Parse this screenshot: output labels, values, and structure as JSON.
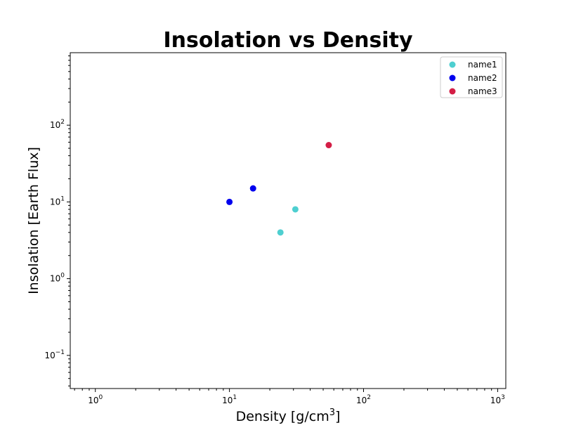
{
  "chart_data": {
    "type": "scatter",
    "title": "Insolation vs Density",
    "xlabel": "Density [g/cm",
    "xlabel_sup": "3",
    "xlabel_end": "]",
    "ylabel": "Insolation [Earth Flux]",
    "xscale": "log",
    "yscale": "log",
    "xlim": [
      0.65,
      1150
    ],
    "ylim": [
      0.037,
      880
    ],
    "x_ticks": [
      {
        "base": "10",
        "exp": "0",
        "value": 1
      },
      {
        "base": "10",
        "exp": "1",
        "value": 10
      },
      {
        "base": "10",
        "exp": "2",
        "value": 100
      },
      {
        "base": "10",
        "exp": "3",
        "value": 1000
      }
    ],
    "y_ticks": [
      {
        "base": "10",
        "exp": "−1",
        "value": 0.1
      },
      {
        "base": "10",
        "exp": "0",
        "value": 1
      },
      {
        "base": "10",
        "exp": "1",
        "value": 10
      },
      {
        "base": "10",
        "exp": "2",
        "value": 100
      }
    ],
    "legend_position": "top-right",
    "series": [
      {
        "name": "name1",
        "color": "#4ecfd0",
        "points": [
          [
            24,
            4
          ],
          [
            31,
            8
          ]
        ]
      },
      {
        "name": "name2",
        "color": "#0000ee",
        "points": [
          [
            10,
            10
          ],
          [
            15,
            15
          ]
        ]
      },
      {
        "name": "name3",
        "color": "#d41e46",
        "points": [
          [
            55,
            55
          ]
        ]
      }
    ]
  }
}
